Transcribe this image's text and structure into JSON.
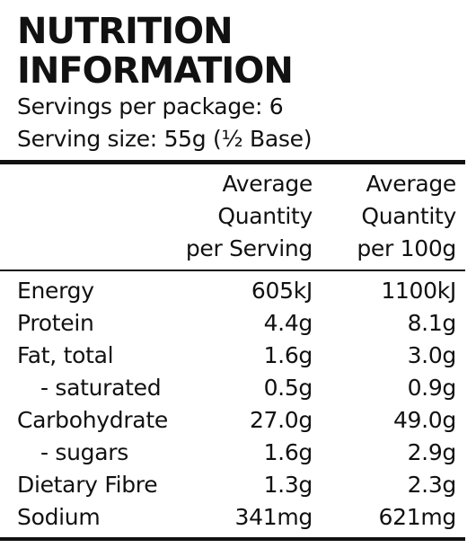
{
  "panel": {
    "title_line1": "NUTRITION",
    "title_line2": "INFORMATION",
    "servings_per_package": "Servings per package: 6",
    "serving_size": "Serving size: 55g (½ Base)"
  },
  "columns": {
    "per_serving": [
      "Average",
      "Quantity",
      "per Serving"
    ],
    "per_100g": [
      "Average",
      "Quantity",
      "per 100g"
    ]
  },
  "rows": [
    {
      "label": "Energy",
      "per_serving": "605kJ",
      "per_100g": "1100kJ",
      "sub": false
    },
    {
      "label": "Protein",
      "per_serving": "4.4g",
      "per_100g": "8.1g",
      "sub": false
    },
    {
      "label": "Fat, total",
      "per_serving": "1.6g",
      "per_100g": "3.0g",
      "sub": false
    },
    {
      "label": "- saturated",
      "per_serving": "0.5g",
      "per_100g": "0.9g",
      "sub": true
    },
    {
      "label": "Carbohydrate",
      "per_serving": "27.0g",
      "per_100g": "49.0g",
      "sub": false
    },
    {
      "label": "- sugars",
      "per_serving": "1.6g",
      "per_100g": "2.9g",
      "sub": true
    },
    {
      "label": "Dietary Fibre",
      "per_serving": "1.3g",
      "per_100g": "2.3g",
      "sub": false
    },
    {
      "label": "Sodium",
      "per_serving": "341mg",
      "per_100g": "621mg",
      "sub": false
    }
  ],
  "colors": {
    "text": "#111111",
    "background": "#ffffff"
  }
}
